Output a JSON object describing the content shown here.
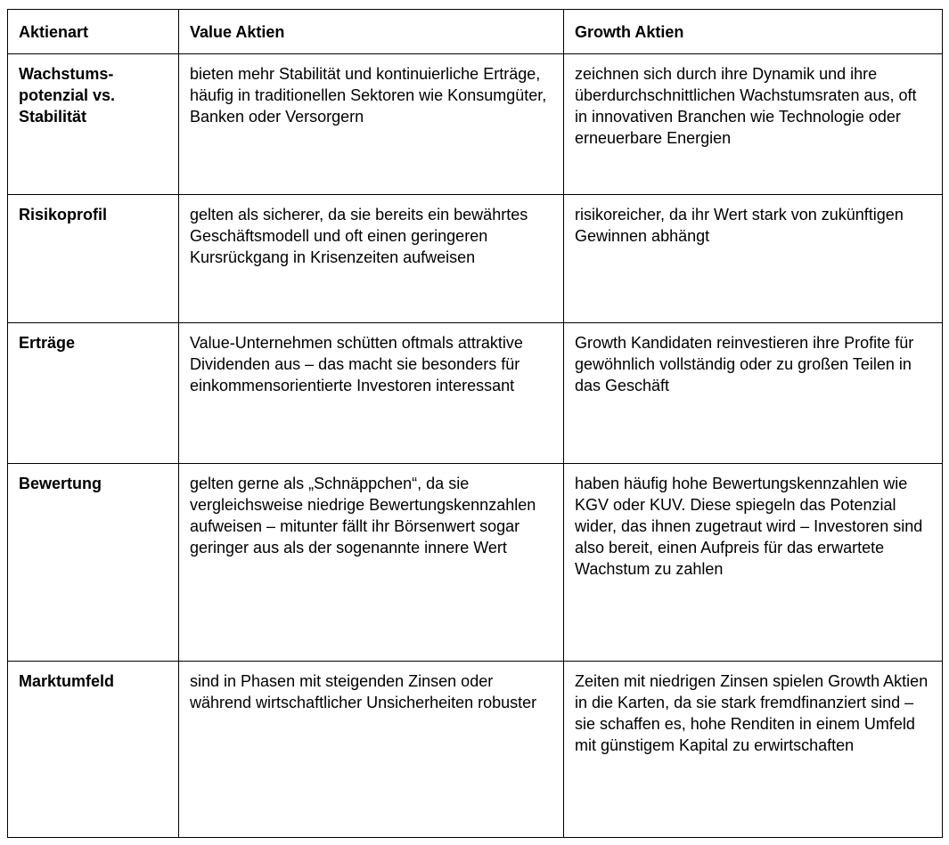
{
  "table": {
    "header": [
      "Aktienart",
      "Value Aktien",
      "Growth Aktien"
    ],
    "rows": [
      [
        "Wachstums-potenzial vs. Stabilität",
        "bieten mehr Stabilität und kontinuierliche Erträge, häufig in traditionellen Sektoren wie Konsumgüter, Banken oder Versorgern",
        "zeichnen sich durch ihre Dynamik und ihre überdurchschnittlichen Wachstumsraten aus, oft in innovativen Branchen wie Technologie oder erneuerbare Energien"
      ],
      [
        "Risikoprofil",
        "gelten als sicherer, da sie bereits ein bewährtes Geschäftsmodell und oft einen geringeren Kursrückgang in Krisenzeiten aufweisen",
        "risikoreicher, da ihr Wert stark von zukünftigen Gewinnen abhängt"
      ],
      [
        "Erträge",
        "Value-Unternehmen schütten oftmals attraktive Dividenden aus – das macht sie besonders für einkommensorientierte Investoren interessant",
        "Growth Kandidaten reinvestieren ihre Profite für gewöhnlich vollständig oder zu großen Teilen in das Geschäft"
      ],
      [
        "Bewertung",
        "gelten gerne als „Schnäppchen“, da sie vergleichsweise niedrige Bewertungskennzahlen aufweisen – mitunter fällt ihr Börsenwert sogar geringer aus als der sogenannte innere Wert",
        "haben häufig hohe Bewertungskennzahlen wie KGV oder KUV. Diese spiegeln das Potenzial wider, das ihnen zugetraut wird – Investoren sind also bereit, einen Aufpreis für das erwartete Wachstum zu zahlen"
      ],
      [
        "Marktumfeld",
        "sind in Phasen mit steigenden Zinsen oder während wirtschaftlicher Unsicherheiten robuster",
        "Zeiten mit niedrigen Zinsen spielen Growth Aktien in die Karten, da sie stark fremdfinanziert sind – sie schaffen es, hohe Renditen in einem Umfeld mit günstigem Kapital zu erwirtschaften"
      ]
    ]
  }
}
